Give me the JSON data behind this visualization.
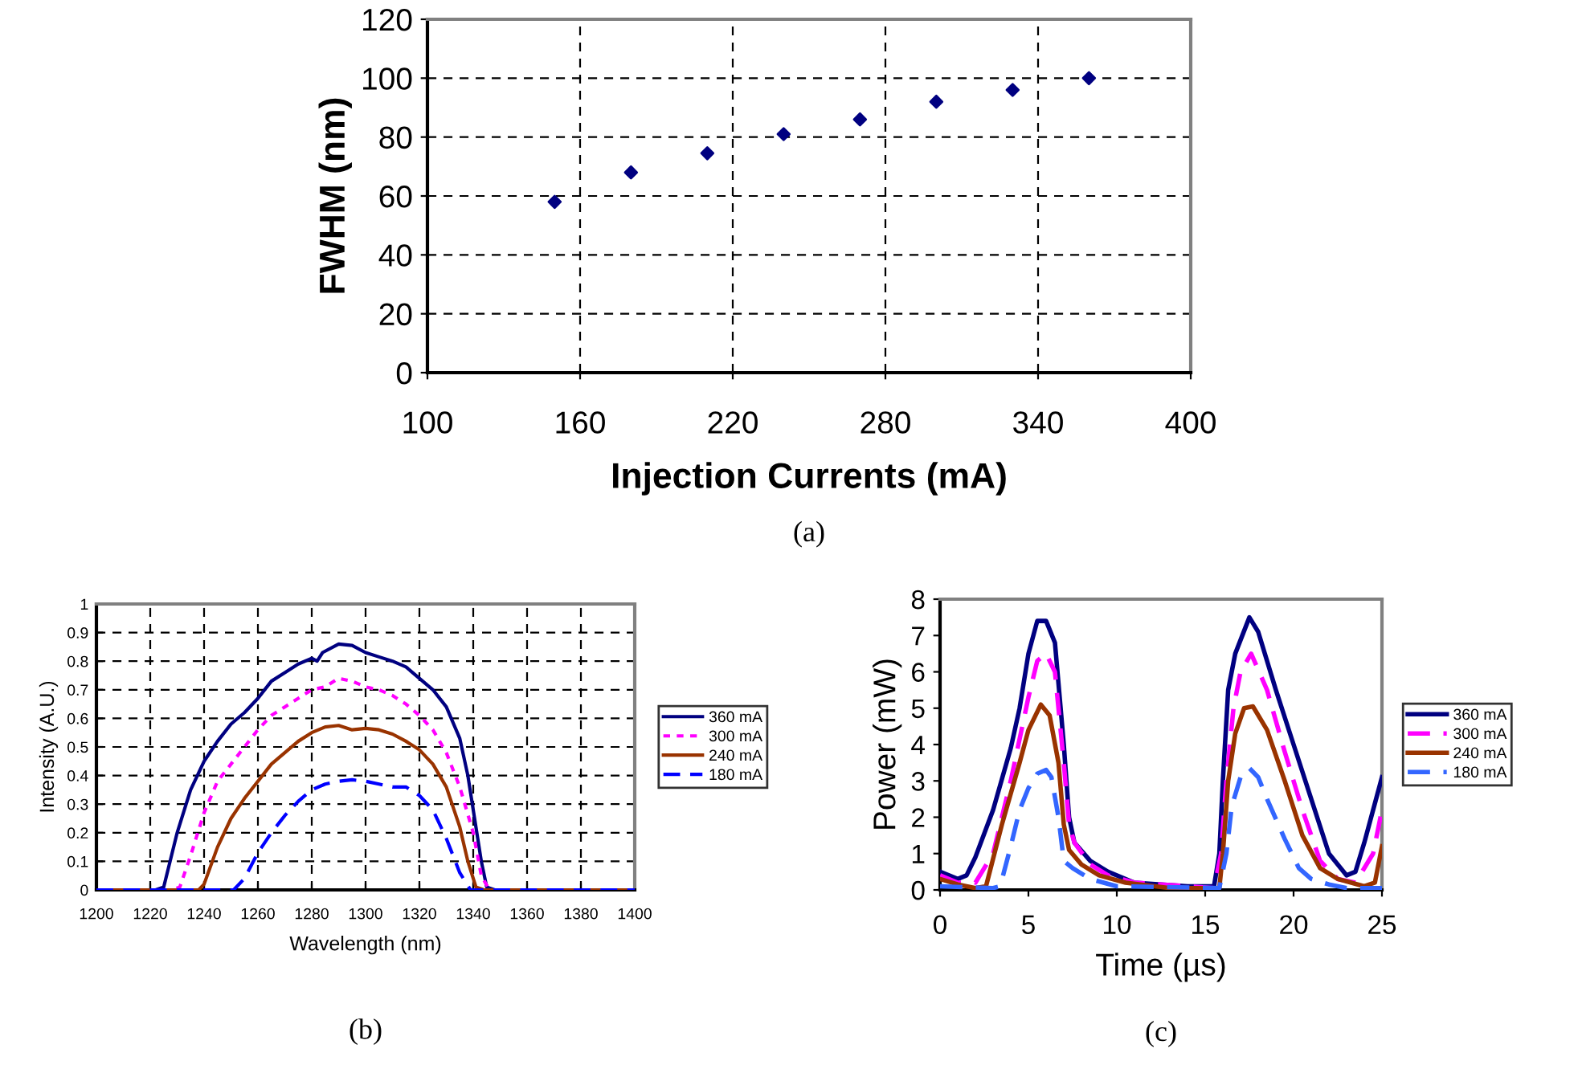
{
  "chart_data": [
    {
      "type": "scatter",
      "xlabel": "Injection Currents (mA)",
      "ylabel": "FWHM (nm)",
      "annotations": [
        "(a)"
      ],
      "x": [
        150,
        180,
        210,
        240,
        270,
        300,
        330,
        360
      ],
      "values": [
        58,
        68,
        74.5,
        81,
        86,
        92,
        96,
        100
      ],
      "color": "#000080",
      "marker": "diamond",
      "xlim": [
        100,
        400
      ],
      "xticks": [
        100,
        160,
        220,
        280,
        340,
        400
      ],
      "ylim": [
        0,
        120
      ],
      "yticks": [
        0,
        20,
        40,
        60,
        80,
        100,
        120
      ],
      "grid": true
    },
    {
      "type": "line",
      "xlabel": "Wavelength (nm)",
      "ylabel": "Intensity (A.U.)",
      "annotations": [
        "(b)"
      ],
      "xlim": [
        1200,
        1400
      ],
      "xticks": [
        1200,
        1220,
        1240,
        1260,
        1280,
        1300,
        1320,
        1340,
        1360,
        1380,
        1400
      ],
      "ylim": [
        0,
        1
      ],
      "yticks": [
        0,
        0.1,
        0.2,
        0.3,
        0.4,
        0.5,
        0.6,
        0.7,
        0.8,
        0.9,
        1
      ],
      "grid": true,
      "legend": "right",
      "series": [
        {
          "name": "360 mA",
          "color": "#000080",
          "line_style": "solid",
          "x": [
            1200,
            1222,
            1225,
            1230,
            1235,
            1240,
            1245,
            1250,
            1255,
            1260,
            1265,
            1270,
            1275,
            1280,
            1282,
            1284,
            1290,
            1295,
            1300,
            1305,
            1310,
            1315,
            1320,
            1325,
            1330,
            1335,
            1338,
            1340,
            1343,
            1345,
            1348,
            1400
          ],
          "values": [
            0,
            0,
            0.01,
            0.2,
            0.35,
            0.45,
            0.52,
            0.58,
            0.62,
            0.67,
            0.73,
            0.76,
            0.79,
            0.81,
            0.8,
            0.83,
            0.86,
            0.855,
            0.83,
            0.815,
            0.8,
            0.78,
            0.74,
            0.7,
            0.64,
            0.53,
            0.4,
            0.28,
            0.1,
            0.01,
            0,
            0
          ]
        },
        {
          "name": "300 mA",
          "color": "#ff00ff",
          "line_style": "dotted",
          "x": [
            1200,
            1228,
            1231,
            1235,
            1240,
            1245,
            1250,
            1255,
            1260,
            1265,
            1270,
            1275,
            1280,
            1285,
            1290,
            1295,
            1300,
            1305,
            1310,
            1315,
            1320,
            1325,
            1330,
            1335,
            1340,
            1343,
            1346,
            1400
          ],
          "values": [
            0,
            0,
            0.01,
            0.12,
            0.27,
            0.38,
            0.44,
            0.5,
            0.56,
            0.61,
            0.64,
            0.67,
            0.7,
            0.71,
            0.74,
            0.73,
            0.71,
            0.7,
            0.68,
            0.65,
            0.61,
            0.56,
            0.48,
            0.36,
            0.2,
            0.05,
            0,
            0
          ]
        },
        {
          "name": "240 mA",
          "color": "#993300",
          "line_style": "solid",
          "x": [
            1200,
            1238,
            1240,
            1245,
            1250,
            1255,
            1260,
            1265,
            1270,
            1275,
            1280,
            1285,
            1290,
            1295,
            1300,
            1305,
            1310,
            1315,
            1320,
            1325,
            1330,
            1335,
            1338,
            1341,
            1344,
            1400
          ],
          "values": [
            0,
            0,
            0.02,
            0.15,
            0.25,
            0.32,
            0.38,
            0.44,
            0.48,
            0.52,
            0.55,
            0.57,
            0.575,
            0.56,
            0.565,
            0.56,
            0.545,
            0.52,
            0.49,
            0.44,
            0.36,
            0.22,
            0.1,
            0.01,
            0,
            0
          ]
        },
        {
          "name": "180 mA",
          "color": "#0000ff",
          "line_style": "dashed",
          "x": [
            1200,
            1251,
            1255,
            1260,
            1265,
            1270,
            1275,
            1280,
            1285,
            1290,
            1295,
            1300,
            1305,
            1310,
            1315,
            1320,
            1325,
            1330,
            1335,
            1339,
            1400
          ],
          "values": [
            0,
            0,
            0.04,
            0.13,
            0.2,
            0.26,
            0.31,
            0.35,
            0.37,
            0.38,
            0.385,
            0.38,
            0.37,
            0.36,
            0.36,
            0.33,
            0.28,
            0.18,
            0.06,
            0,
            0
          ]
        }
      ]
    },
    {
      "type": "line",
      "xlabel": "Time (µs)",
      "ylabel": "Power (mW)",
      "annotations": [
        "(c)"
      ],
      "xlim": [
        0,
        25
      ],
      "xticks": [
        0,
        5,
        10,
        15,
        20,
        25
      ],
      "ylim": [
        0,
        8
      ],
      "yticks": [
        0,
        1,
        2,
        3,
        4,
        5,
        6,
        7,
        8
      ],
      "legend": "right",
      "series": [
        {
          "name": "360 mA",
          "color": "#000080",
          "line_style": "solid",
          "x": [
            0,
            1,
            1.5,
            2,
            3,
            4,
            4.5,
            5,
            5.5,
            6,
            6.5,
            7,
            7.3,
            7.6,
            8.5,
            9.5,
            11,
            14,
            15.5,
            15.8,
            16,
            16.3,
            16.7,
            17.5,
            18,
            19,
            20,
            21,
            22,
            23,
            23.5,
            24,
            25
          ],
          "values": [
            0.5,
            0.3,
            0.4,
            0.9,
            2.2,
            3.9,
            5,
            6.5,
            7.4,
            7.4,
            6.8,
            4,
            2,
            1.3,
            0.8,
            0.5,
            0.2,
            0.1,
            0.1,
            1,
            3,
            5.5,
            6.5,
            7.5,
            7.1,
            5.5,
            4,
            2.5,
            1,
            0.4,
            0.5,
            1.3,
            3.1
          ]
        },
        {
          "name": "300 mA",
          "color": "#ff00ff",
          "line_style": "dashed",
          "x": [
            0,
            1,
            2,
            3,
            4,
            5,
            5.5,
            6,
            6.5,
            7,
            7.3,
            7.6,
            8.5,
            9.5,
            11,
            14,
            15.5,
            15.9,
            16.2,
            16.6,
            17,
            17.6,
            18.5,
            19.5,
            20.5,
            21.5,
            22.5,
            23.5,
            24.5,
            25
          ],
          "values": [
            0.4,
            0.2,
            0.2,
            1,
            3,
            5.3,
            6.3,
            6.5,
            6,
            3.5,
            1.8,
            1.3,
            0.7,
            0.4,
            0.2,
            0.1,
            0.05,
            1,
            3,
            5,
            6,
            6.5,
            5.5,
            3.8,
            2.2,
            0.8,
            0.3,
            0.2,
            1,
            2.2
          ]
        },
        {
          "name": "240 mA",
          "color": "#993300",
          "line_style": "solid",
          "x": [
            0,
            1,
            2,
            2.6,
            3.5,
            4.5,
            5,
            5.7,
            6.2,
            6.7,
            7,
            7.3,
            8,
            9,
            10.5,
            13,
            15.8,
            16,
            16.3,
            16.7,
            17.2,
            17.7,
            18.5,
            19.5,
            20.5,
            21.5,
            22.5,
            24,
            24.6,
            25
          ],
          "values": [
            0.3,
            0.15,
            0.05,
            0.1,
            1.8,
            3.5,
            4.4,
            5.1,
            4.8,
            3.5,
            1.8,
            1.1,
            0.7,
            0.4,
            0.2,
            0.05,
            0.05,
            1,
            3,
            4.3,
            5,
            5.05,
            4.4,
            3,
            1.5,
            0.6,
            0.3,
            0.1,
            0.2,
            1.2
          ]
        },
        {
          "name": "180 mA",
          "color": "#3366ff",
          "line_style": "dashed",
          "x": [
            0,
            3,
            3.4,
            4,
            4.5,
            5,
            5.5,
            6,
            6.3,
            6.7,
            7,
            7.5,
            8.5,
            10,
            15.8,
            16.2,
            16.5,
            17,
            17.5,
            18,
            18.5,
            19.5,
            20.3,
            21,
            22,
            23,
            25
          ],
          "values": [
            0.1,
            0.05,
            0.1,
            1.2,
            2.2,
            2.8,
            3.2,
            3.3,
            3.1,
            2,
            0.8,
            0.6,
            0.3,
            0.1,
            0.05,
            1,
            2.3,
            3.1,
            3.35,
            3.1,
            2.5,
            1.4,
            0.6,
            0.3,
            0.15,
            0.05,
            0.05
          ]
        }
      ]
    }
  ]
}
